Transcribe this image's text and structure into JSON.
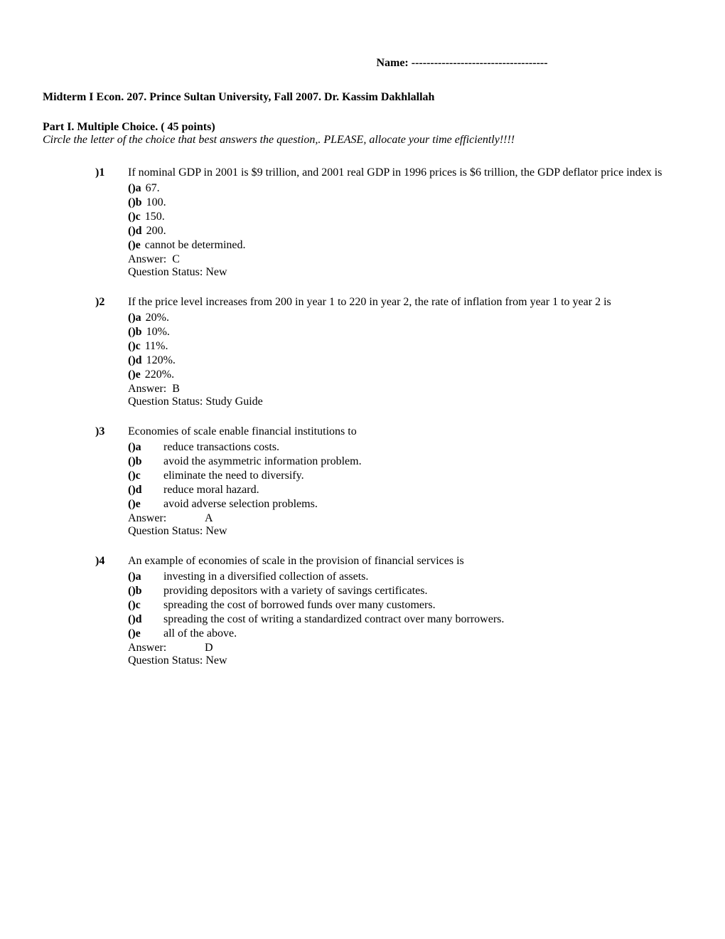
{
  "header": {
    "name_label": "Name:",
    "name_line": "------------------------------------"
  },
  "title": "Midterm I  Econ. 207.  Prince Sultan University, Fall 2007.  Dr. Kassim Dakhlallah",
  "part_heading": "Part I.  Multiple Choice.  ( 45 points)",
  "instructions": "Circle  the letter of the choice that best  answers the question,.  PLEASE, allocate your time efficiently!!!!",
  "questions": [
    {
      "number": ")1",
      "stem": "If nominal GDP in 2001 is $9 trillion, and 2001 real GDP in 1996 prices is $6 trillion, the GDP deflator price index is",
      "option_style": "narrow",
      "options": [
        {
          "label": "()a",
          "text": "67."
        },
        {
          "label": "()b",
          "text": "100."
        },
        {
          "label": "()c",
          "text": "150."
        },
        {
          "label": "()d",
          "text": "200."
        },
        {
          "label": "()e",
          "text": "cannot be determined."
        }
      ],
      "answer_label": "Answer:",
      "answer_value": "C",
      "answer_style": "narrow",
      "status_label": "Question Status:",
      "status_value": "New"
    },
    {
      "number": ")2",
      "stem": "If the price level increases from 200 in year 1 to 220 in year 2, the rate of inflation from year 1 to year 2 is",
      "option_style": "narrow",
      "options": [
        {
          "label": "()a",
          "text": "20%."
        },
        {
          "label": "()b",
          "text": "10%."
        },
        {
          "label": "()c",
          "text": "11%."
        },
        {
          "label": "()d",
          "text": "120%."
        },
        {
          "label": "()e",
          "text": "220%."
        }
      ],
      "answer_label": "Answer:",
      "answer_value": "B",
      "answer_style": "narrow",
      "status_label": "Question Status:",
      "status_value": "Study Guide"
    },
    {
      "number": ")3",
      "stem": "Economies of scale enable financial institutions to",
      "option_style": "wide",
      "options": [
        {
          "label": "()a",
          "text": "reduce transactions costs."
        },
        {
          "label": "()b",
          "text": "avoid the asymmetric information problem."
        },
        {
          "label": "()c",
          "text": "eliminate the need to diversify."
        },
        {
          "label": "()d",
          "text": "reduce moral hazard."
        },
        {
          "label": "()e",
          "text": "avoid adverse selection problems."
        }
      ],
      "answer_label": "Answer:",
      "answer_value": "A",
      "answer_style": "wide",
      "status_label": "Question Status:",
      "status_value": "New"
    },
    {
      "number": ")4",
      "stem": "An example of economies of scale in the provision of financial services is",
      "option_style": "wide",
      "options": [
        {
          "label": "()a",
          "text": "investing in a diversified collection of assets."
        },
        {
          "label": "()b",
          "text": "providing depositors with a variety of savings certificates."
        },
        {
          "label": "()c",
          "text": "spreading the cost of borrowed funds over many customers."
        },
        {
          "label": "()d",
          "text": "spreading the cost of writing a standardized contract over many borrowers."
        },
        {
          "label": "()e",
          "text": "all of the above."
        }
      ],
      "answer_label": "Answer:",
      "answer_value": "D",
      "answer_style": "wide",
      "status_label": "Question Status:",
      "status_value": "New"
    }
  ]
}
